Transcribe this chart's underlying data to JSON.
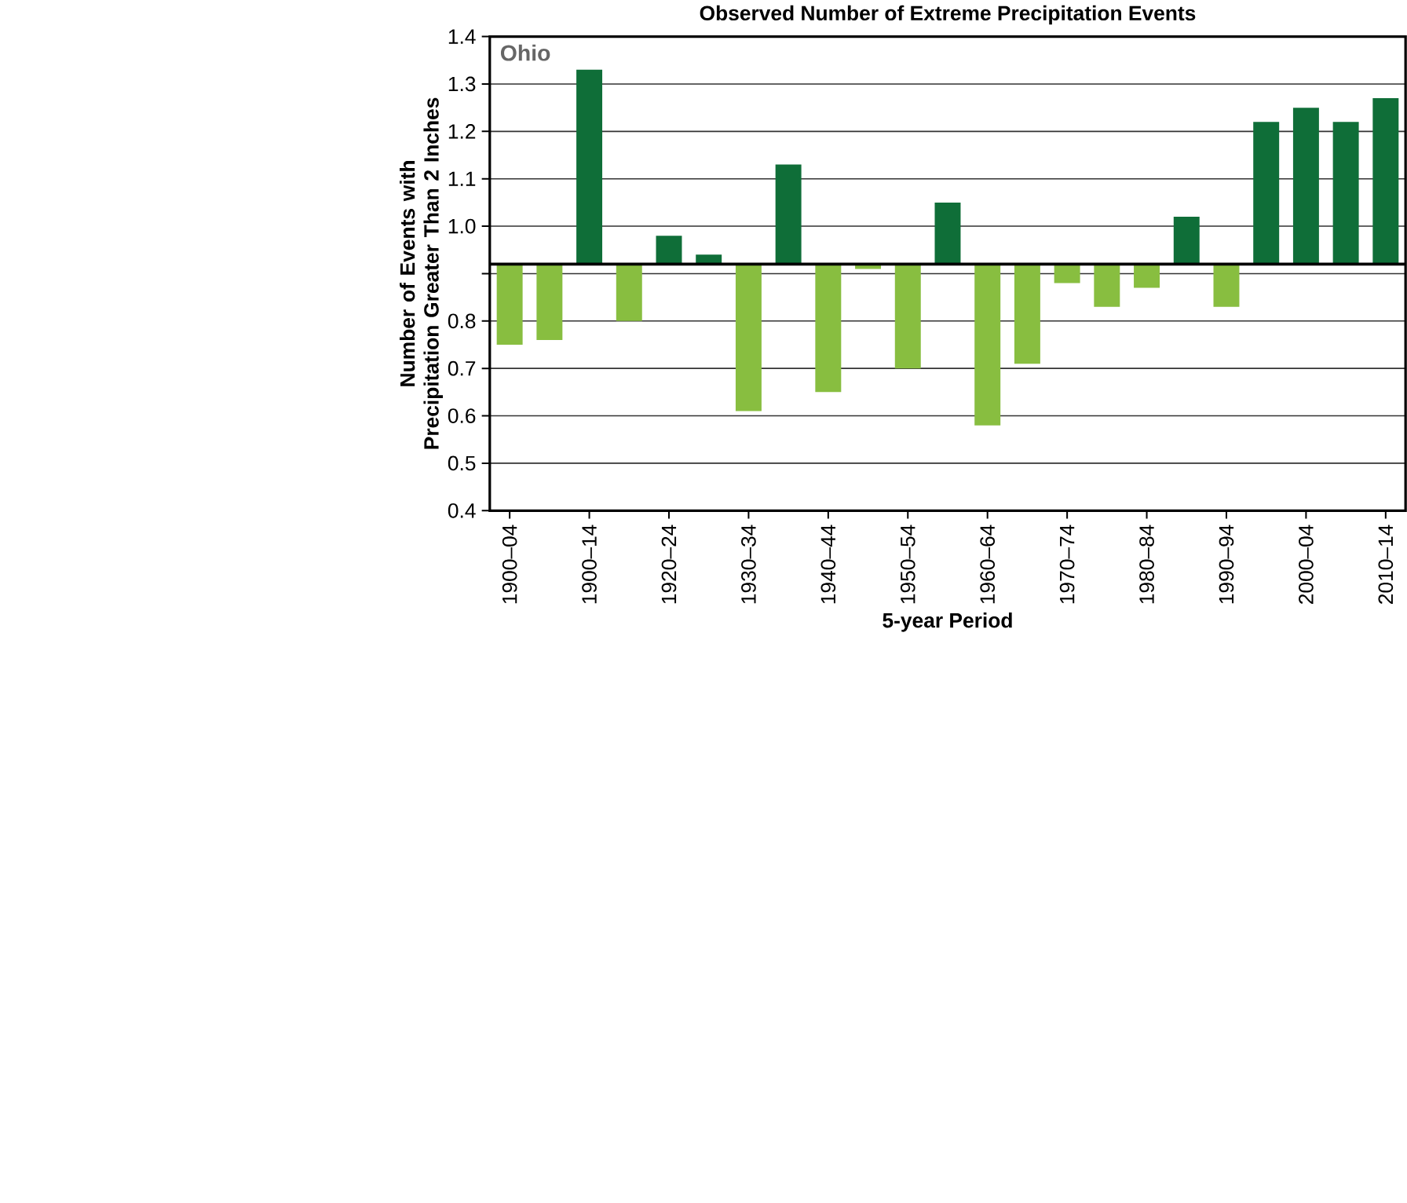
{
  "chart_data": {
    "type": "bar",
    "title": "Observed  Number of Extreme Precipitation Events",
    "xlabel": "5-year Period",
    "ylabel": "Number of Events with Precipitation Greater Than 2 Inches",
    "annotations": [
      "Ohio"
    ],
    "categories": [
      "1900–04",
      null,
      "1900–14",
      null,
      "1920–24",
      null,
      "1930–34",
      null,
      "1940–44",
      null,
      "1950–54",
      null,
      "1960–64",
      null,
      "1970–74",
      null,
      "1980–84",
      null,
      "1990–94",
      null,
      "2000–04",
      null,
      "2010–14"
    ],
    "base": [
      0.92,
      0.92,
      0.92,
      0.92,
      0.92,
      0.92,
      0.92,
      0.92,
      0.92,
      0.92,
      0.92,
      0.92,
      0.92,
      0.92,
      0.92,
      0.92,
      0.92,
      0.92,
      0.92,
      0.92,
      0.92,
      0.92,
      0.92
    ],
    "values": [
      -0.17,
      -0.16,
      0.41,
      -0.12,
      0.06,
      0.02,
      -0.31,
      0.21,
      -0.27,
      -0.01,
      -0.22,
      0.13,
      -0.34,
      -0.21,
      -0.04,
      -0.09,
      -0.05,
      0.1,
      -0.09,
      0.3,
      0.33,
      0.3,
      0.35
    ],
    "colors": [
      "#88be40",
      "#88be40",
      "#0f6e38",
      "#88be40",
      "#0f6e38",
      "#0f6e38",
      "#88be40",
      "#0f6e38",
      "#88be40",
      "#88be40",
      "#88be40",
      "#0f6e38",
      "#88be40",
      "#88be40",
      "#88be40",
      "#88be40",
      "#88be40",
      "#0f6e38",
      "#88be40",
      "#0f6e38",
      "#0f6e38",
      "#0f6e38",
      "#0f6e38"
    ],
    "ylim": [
      0.4,
      1.4
    ],
    "yticks": [
      0.4,
      0.5,
      0.6,
      0.7,
      0.8,
      {
        "value": 0.9,
        "label": null
      },
      {
        "value": 1.0,
        "label": "1.0"
      },
      1.1,
      1.2,
      1.3,
      1.4
    ],
    "ref_lines": [
      {
        "axis": "y",
        "value": 0.92
      }
    ],
    "grid": "y"
  }
}
